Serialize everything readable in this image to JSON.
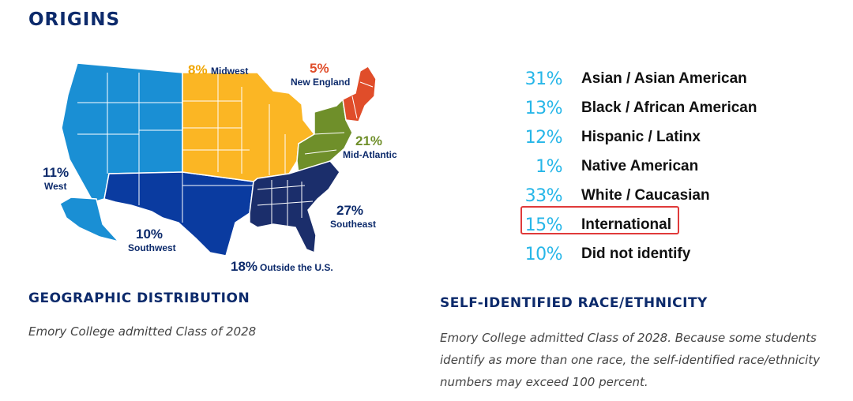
{
  "page": {
    "title": "ORIGINS",
    "geo_heading": "GEOGRAPHIC DISTRIBUTION",
    "geo_caption": "Emory College admitted Class of 2028",
    "race_heading": "SELF-IDENTIFIED RACE/ETHNICITY",
    "race_caption": "Emory College admitted Class of 2028. Because some students identify as more than one race, the self-identified race/ethnicity numbers may exceed 100 percent."
  },
  "chart_data": [
    {
      "type": "map",
      "title": "",
      "regions": [
        {
          "name": "West",
          "value": 11,
          "label": "11%",
          "color": "#1a8fd4"
        },
        {
          "name": "Midwest",
          "value": 8,
          "label": "8%",
          "color": "#fbb624"
        },
        {
          "name": "New England",
          "value": 5,
          "label": "5%",
          "color": "#e04d2a"
        },
        {
          "name": "Mid-Atlantic",
          "value": 21,
          "label": "21%",
          "color": "#6f8f2a"
        },
        {
          "name": "Southeast",
          "value": 27,
          "label": "27%",
          "color": "#1b2e6b"
        },
        {
          "name": "Southwest",
          "value": 10,
          "label": "10%",
          "color": "#0a3ba0"
        },
        {
          "name": "Outside the U.S.",
          "value": 18,
          "label": "18%",
          "color": "#0c2a6b"
        }
      ]
    },
    {
      "type": "table",
      "title": "",
      "rows": [
        {
          "category": "Asian / Asian American",
          "value": 31,
          "label": "31%"
        },
        {
          "category": "Black / African American",
          "value": 13,
          "label": "13%"
        },
        {
          "category": "Hispanic / Latinx",
          "value": 12,
          "label": "12%"
        },
        {
          "category": "Native American",
          "value": 1,
          "label": "1%"
        },
        {
          "category": "White / Caucasian",
          "value": 33,
          "label": "33%"
        },
        {
          "category": "International",
          "value": 15,
          "label": "15%",
          "highlighted": true
        },
        {
          "category": "Did not identify",
          "value": 10,
          "label": "10%"
        }
      ]
    }
  ],
  "colors": {
    "navy": "#0c2a6b",
    "percent_blue": "#26b6e8",
    "highlight_red": "#e03a3a"
  }
}
